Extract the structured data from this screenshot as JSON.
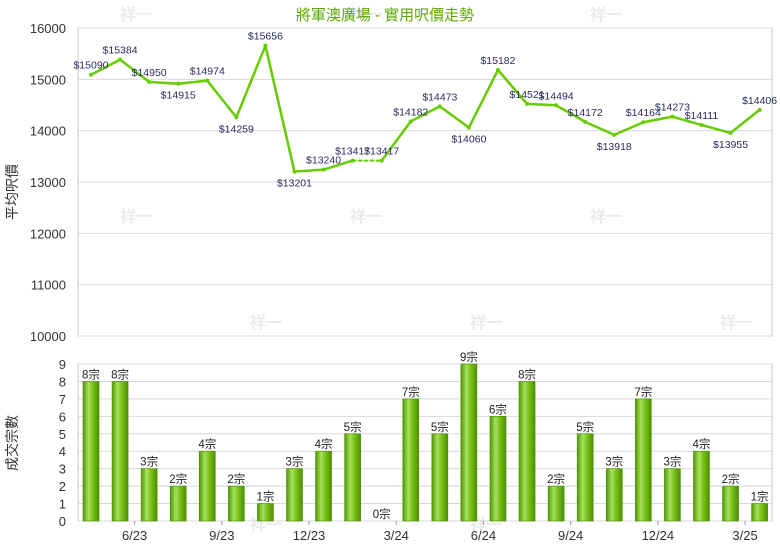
{
  "chart_data": [
    {
      "type": "line",
      "title": "將軍澳廣場 - 實用呎價走勢",
      "ylabel": "平均呎價",
      "ylim": [
        10000,
        16000
      ],
      "yticks": [
        10000,
        11000,
        12000,
        13000,
        14000,
        15000,
        16000
      ],
      "grid": true,
      "color": "#66cc00",
      "series": [
        {
          "values": [
            15090,
            15384,
            14950,
            14915,
            14974,
            14259,
            15656,
            13201,
            13240,
            13417,
            13417,
            14182,
            14473,
            14060,
            15182,
            14521,
            14494,
            14172,
            13918,
            14164,
            14273,
            14111,
            13955,
            14406
          ],
          "labels": [
            "$15090",
            "$15384",
            "$14950",
            "$14915",
            "$14974",
            "$14259",
            "$15656",
            "$13201",
            "$13240",
            "$13417",
            "$13417",
            "$14182",
            "$14473",
            "$14060",
            "$15182",
            "$14521",
            "$14494",
            "$14172",
            "$13918",
            "$14164",
            "$14273",
            "$14111",
            "$13955",
            "$14406"
          ],
          "dashed_segments": [
            9
          ]
        }
      ]
    },
    {
      "type": "bar",
      "ylabel": "成交宗數",
      "ylim": [
        0,
        9
      ],
      "yticks": [
        0,
        1,
        2,
        3,
        4,
        5,
        6,
        7,
        8,
        9
      ],
      "grid": true,
      "color": "#66cc00",
      "x_tick_labels": [
        "6/23",
        "9/23",
        "12/23",
        "3/24",
        "6/24",
        "9/24",
        "12/24",
        "3/25"
      ],
      "series": [
        {
          "values": [
            8,
            8,
            3,
            2,
            4,
            2,
            1,
            3,
            4,
            5,
            0,
            7,
            5,
            9,
            6,
            8,
            2,
            5,
            3,
            7,
            3,
            4,
            2,
            1
          ],
          "labels": [
            "8宗",
            "8宗",
            "3宗",
            "2宗",
            "4宗",
            "2宗",
            "1宗",
            "3宗",
            "4宗",
            "5宗",
            "0宗",
            "7宗",
            "5宗",
            "9宗",
            "6宗",
            "8宗",
            "2宗",
            "5宗",
            "3宗",
            "7宗",
            "3宗",
            "4宗",
            "2宗",
            "1宗"
          ]
        }
      ]
    }
  ],
  "watermark_text": "祥一"
}
